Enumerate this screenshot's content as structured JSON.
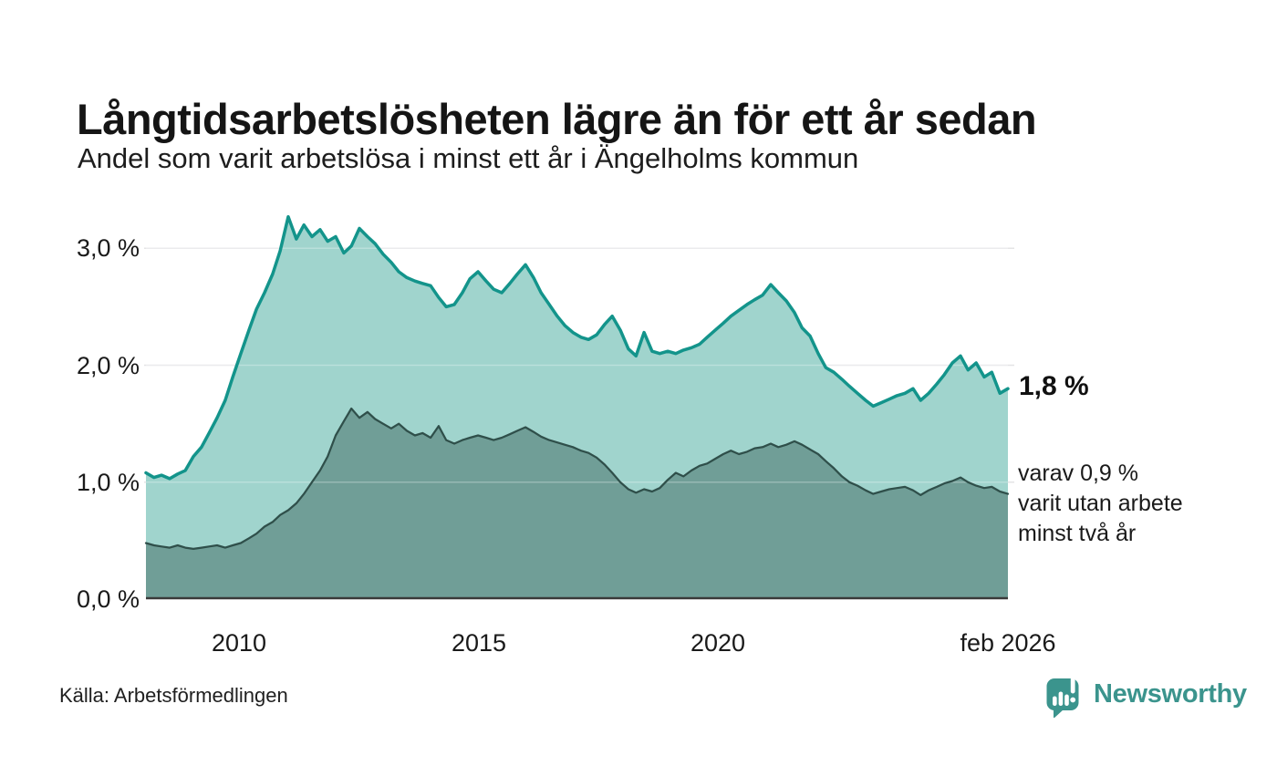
{
  "page": {
    "source": "Källa: Arbetsförmedlingen",
    "brand": {
      "name": "Newsworthy",
      "color": "#3b948d",
      "icon": "newsworthy-speech-bubble-bar-chart"
    }
  },
  "chart_data": {
    "type": "area",
    "title": "Långtidsarbetslösheten lägre än för ett år sedan",
    "subtitle": "Andel som varit arbetslösa i minst ett år i Ängelholms kommun",
    "x_unit": "decimal_year_monthly_bimonthly",
    "xlim": [
      2008.0,
      2026.17
    ],
    "ylim": [
      0,
      3.33
    ],
    "grid": "horizontal",
    "legend": "none",
    "x": [
      2008,
      2008.17,
      2008.33,
      2008.5,
      2008.67,
      2008.83,
      2009,
      2009.17,
      2009.33,
      2009.5,
      2009.67,
      2009.83,
      2010,
      2010.17,
      2010.33,
      2010.5,
      2010.67,
      2010.83,
      2011,
      2011.17,
      2011.33,
      2011.5,
      2011.67,
      2011.83,
      2012,
      2012.17,
      2012.33,
      2012.5,
      2012.67,
      2012.83,
      2013,
      2013.17,
      2013.33,
      2013.5,
      2013.67,
      2013.83,
      2014,
      2014.17,
      2014.33,
      2014.5,
      2014.67,
      2014.83,
      2015,
      2015.17,
      2015.33,
      2015.5,
      2015.67,
      2015.83,
      2016,
      2016.17,
      2016.33,
      2016.5,
      2016.67,
      2016.83,
      2017,
      2017.17,
      2017.33,
      2017.5,
      2017.67,
      2017.83,
      2018,
      2018.17,
      2018.33,
      2018.5,
      2018.67,
      2018.83,
      2019,
      2019.17,
      2019.33,
      2019.5,
      2019.67,
      2019.83,
      2020,
      2020.17,
      2020.33,
      2020.5,
      2020.67,
      2020.83,
      2021,
      2021.17,
      2021.33,
      2021.5,
      2021.67,
      2021.83,
      2022,
      2022.17,
      2022.33,
      2022.5,
      2022.67,
      2022.83,
      2023,
      2023.17,
      2023.33,
      2023.5,
      2023.67,
      2023.83,
      2024,
      2024.17,
      2024.33,
      2024.5,
      2024.67,
      2024.83,
      2025,
      2025.17,
      2025.33,
      2025.5,
      2025.67,
      2025.83,
      2026,
      2026.17
    ],
    "series": [
      {
        "name": "Andel som varit arbetslösa minst ett år",
        "fill": "#a0d4cd",
        "stroke": "#13948b",
        "end_label": "1,8 %",
        "end_value": 1.8,
        "values": [
          1.08,
          1.04,
          1.06,
          1.03,
          1.07,
          1.1,
          1.22,
          1.3,
          1.42,
          1.55,
          1.7,
          1.9,
          2.1,
          2.3,
          2.48,
          2.62,
          2.78,
          2.98,
          3.27,
          3.08,
          3.2,
          3.1,
          3.16,
          3.06,
          3.1,
          2.96,
          3.02,
          3.17,
          3.1,
          3.04,
          2.95,
          2.88,
          2.8,
          2.75,
          2.72,
          2.7,
          2.68,
          2.58,
          2.5,
          2.52,
          2.62,
          2.74,
          2.8,
          2.72,
          2.65,
          2.62,
          2.7,
          2.78,
          2.86,
          2.75,
          2.62,
          2.52,
          2.42,
          2.34,
          2.28,
          2.24,
          2.22,
          2.26,
          2.35,
          2.42,
          2.3,
          2.14,
          2.08,
          2.28,
          2.12,
          2.1,
          2.12,
          2.1,
          2.13,
          2.15,
          2.18,
          2.24,
          2.3,
          2.36,
          2.42,
          2.47,
          2.52,
          2.56,
          2.6,
          2.69,
          2.62,
          2.55,
          2.45,
          2.32,
          2.25,
          2.1,
          1.98,
          1.94,
          1.88,
          1.82,
          1.76,
          1.7,
          1.65,
          1.68,
          1.71,
          1.74,
          1.76,
          1.8,
          1.7,
          1.76,
          1.84,
          1.92,
          2.02,
          2.08,
          1.96,
          2.02,
          1.9,
          1.94,
          1.76,
          1.8
        ]
      },
      {
        "name": "varav arbetslösa minst två år",
        "fill": "#709e97",
        "stroke": "#2f4f4a",
        "end_label_lines": [
          "varav 0,9 %",
          "varit utan arbete",
          "minst två år"
        ],
        "end_value": 0.9,
        "values": [
          0.48,
          0.46,
          0.45,
          0.44,
          0.46,
          0.44,
          0.43,
          0.44,
          0.45,
          0.46,
          0.44,
          0.46,
          0.48,
          0.52,
          0.56,
          0.62,
          0.66,
          0.72,
          0.76,
          0.82,
          0.9,
          1.0,
          1.1,
          1.22,
          1.4,
          1.52,
          1.63,
          1.55,
          1.6,
          1.54,
          1.5,
          1.46,
          1.5,
          1.44,
          1.4,
          1.42,
          1.38,
          1.48,
          1.36,
          1.33,
          1.36,
          1.38,
          1.4,
          1.38,
          1.36,
          1.38,
          1.41,
          1.44,
          1.47,
          1.43,
          1.39,
          1.36,
          1.34,
          1.32,
          1.3,
          1.27,
          1.25,
          1.21,
          1.15,
          1.08,
          1.0,
          0.94,
          0.91,
          0.94,
          0.92,
          0.95,
          1.02,
          1.08,
          1.05,
          1.1,
          1.14,
          1.16,
          1.2,
          1.24,
          1.27,
          1.24,
          1.26,
          1.29,
          1.3,
          1.33,
          1.3,
          1.32,
          1.35,
          1.32,
          1.28,
          1.24,
          1.18,
          1.12,
          1.05,
          1.0,
          0.97,
          0.93,
          0.9,
          0.92,
          0.94,
          0.95,
          0.96,
          0.93,
          0.89,
          0.93,
          0.96,
          0.99,
          1.01,
          1.04,
          1.0,
          0.97,
          0.95,
          0.96,
          0.92,
          0.9
        ]
      }
    ],
    "yticks": [
      {
        "v": 0,
        "label": "0,0 %"
      },
      {
        "v": 1,
        "label": "1,0 %"
      },
      {
        "v": 2,
        "label": "2,0 %"
      },
      {
        "v": 3,
        "label": "3,0 %"
      }
    ],
    "xticks": [
      {
        "v": 2010,
        "label": "2010"
      },
      {
        "v": 2015,
        "label": "2015"
      },
      {
        "v": 2020,
        "label": "2020"
      },
      {
        "v": 2026.08,
        "label": "feb 2026"
      }
    ]
  }
}
